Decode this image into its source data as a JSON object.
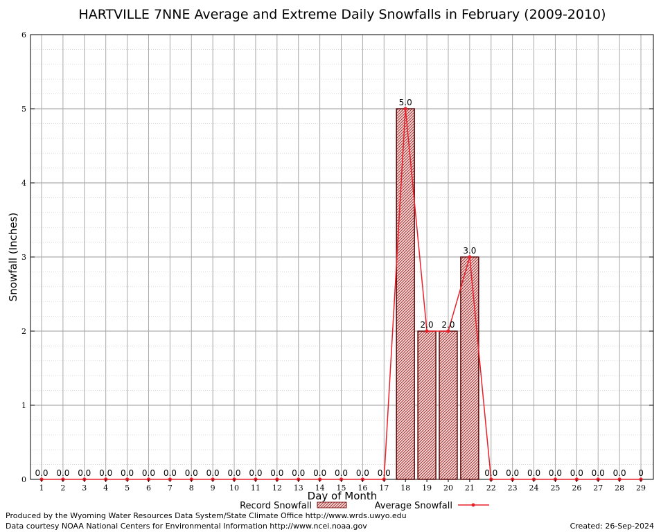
{
  "chart_data": {
    "type": "bar",
    "title": "HARTVILLE 7NNE Average and Extreme Daily Snowfalls in February (2009-2010)",
    "xlabel": "Day of Month",
    "ylabel": "Snowfall (Inches)",
    "ylim": [
      0,
      6
    ],
    "yticks": [
      "0",
      "1",
      "2",
      "3",
      "4",
      "5",
      "6"
    ],
    "categories": [
      "1",
      "2",
      "3",
      "4",
      "5",
      "6",
      "7",
      "8",
      "9",
      "10",
      "11",
      "12",
      "13",
      "14",
      "15",
      "16",
      "17",
      "18",
      "19",
      "20",
      "21",
      "22",
      "23",
      "24",
      "25",
      "26",
      "27",
      "28",
      "29"
    ],
    "series": [
      {
        "name": "Record Snowfall",
        "type": "bar",
        "color": "#a01a1a",
        "values": [
          0,
          0,
          0,
          0,
          0,
          0,
          0,
          0,
          0,
          0,
          0,
          0,
          0,
          0,
          0,
          0,
          0,
          5.0,
          2.0,
          2.0,
          3.0,
          0,
          0,
          0,
          0,
          0,
          0,
          0,
          0
        ]
      },
      {
        "name": "Average Snowfall",
        "type": "line",
        "color": "#e8202a",
        "values": [
          0,
          0,
          0,
          0,
          0,
          0,
          0,
          0,
          0,
          0,
          0,
          0,
          0,
          0,
          0,
          0,
          0,
          5.0,
          2.0,
          2.0,
          3.0,
          0,
          0,
          0,
          0,
          0,
          0,
          0,
          0
        ]
      }
    ],
    "data_labels": [
      "0.0",
      "0.0",
      "0.0",
      "0.0",
      "0.0",
      "0.0",
      "0.0",
      "0.0",
      "0.0",
      "0.0",
      "0.0",
      "0.0",
      "0.0",
      "0.0",
      "0.0",
      "0.0",
      "0.0",
      "5.0",
      "2.0",
      "2.0",
      "3.0",
      "0.0",
      "0.0",
      "0.0",
      "0.0",
      "0.0",
      "0.0",
      "0.0",
      "0"
    ],
    "grid": true,
    "legend_position": "bottom"
  },
  "footer": {
    "produced_by": "Produced by the Wyoming Water Resources Data System/State Climate Office http://www.wrds.uwyo.edu",
    "courtesy": "Data courtesy NOAA National Centers for Environmental Information http://www.ncei.noaa.gov",
    "created": "Created:  26-Sep-2024"
  }
}
